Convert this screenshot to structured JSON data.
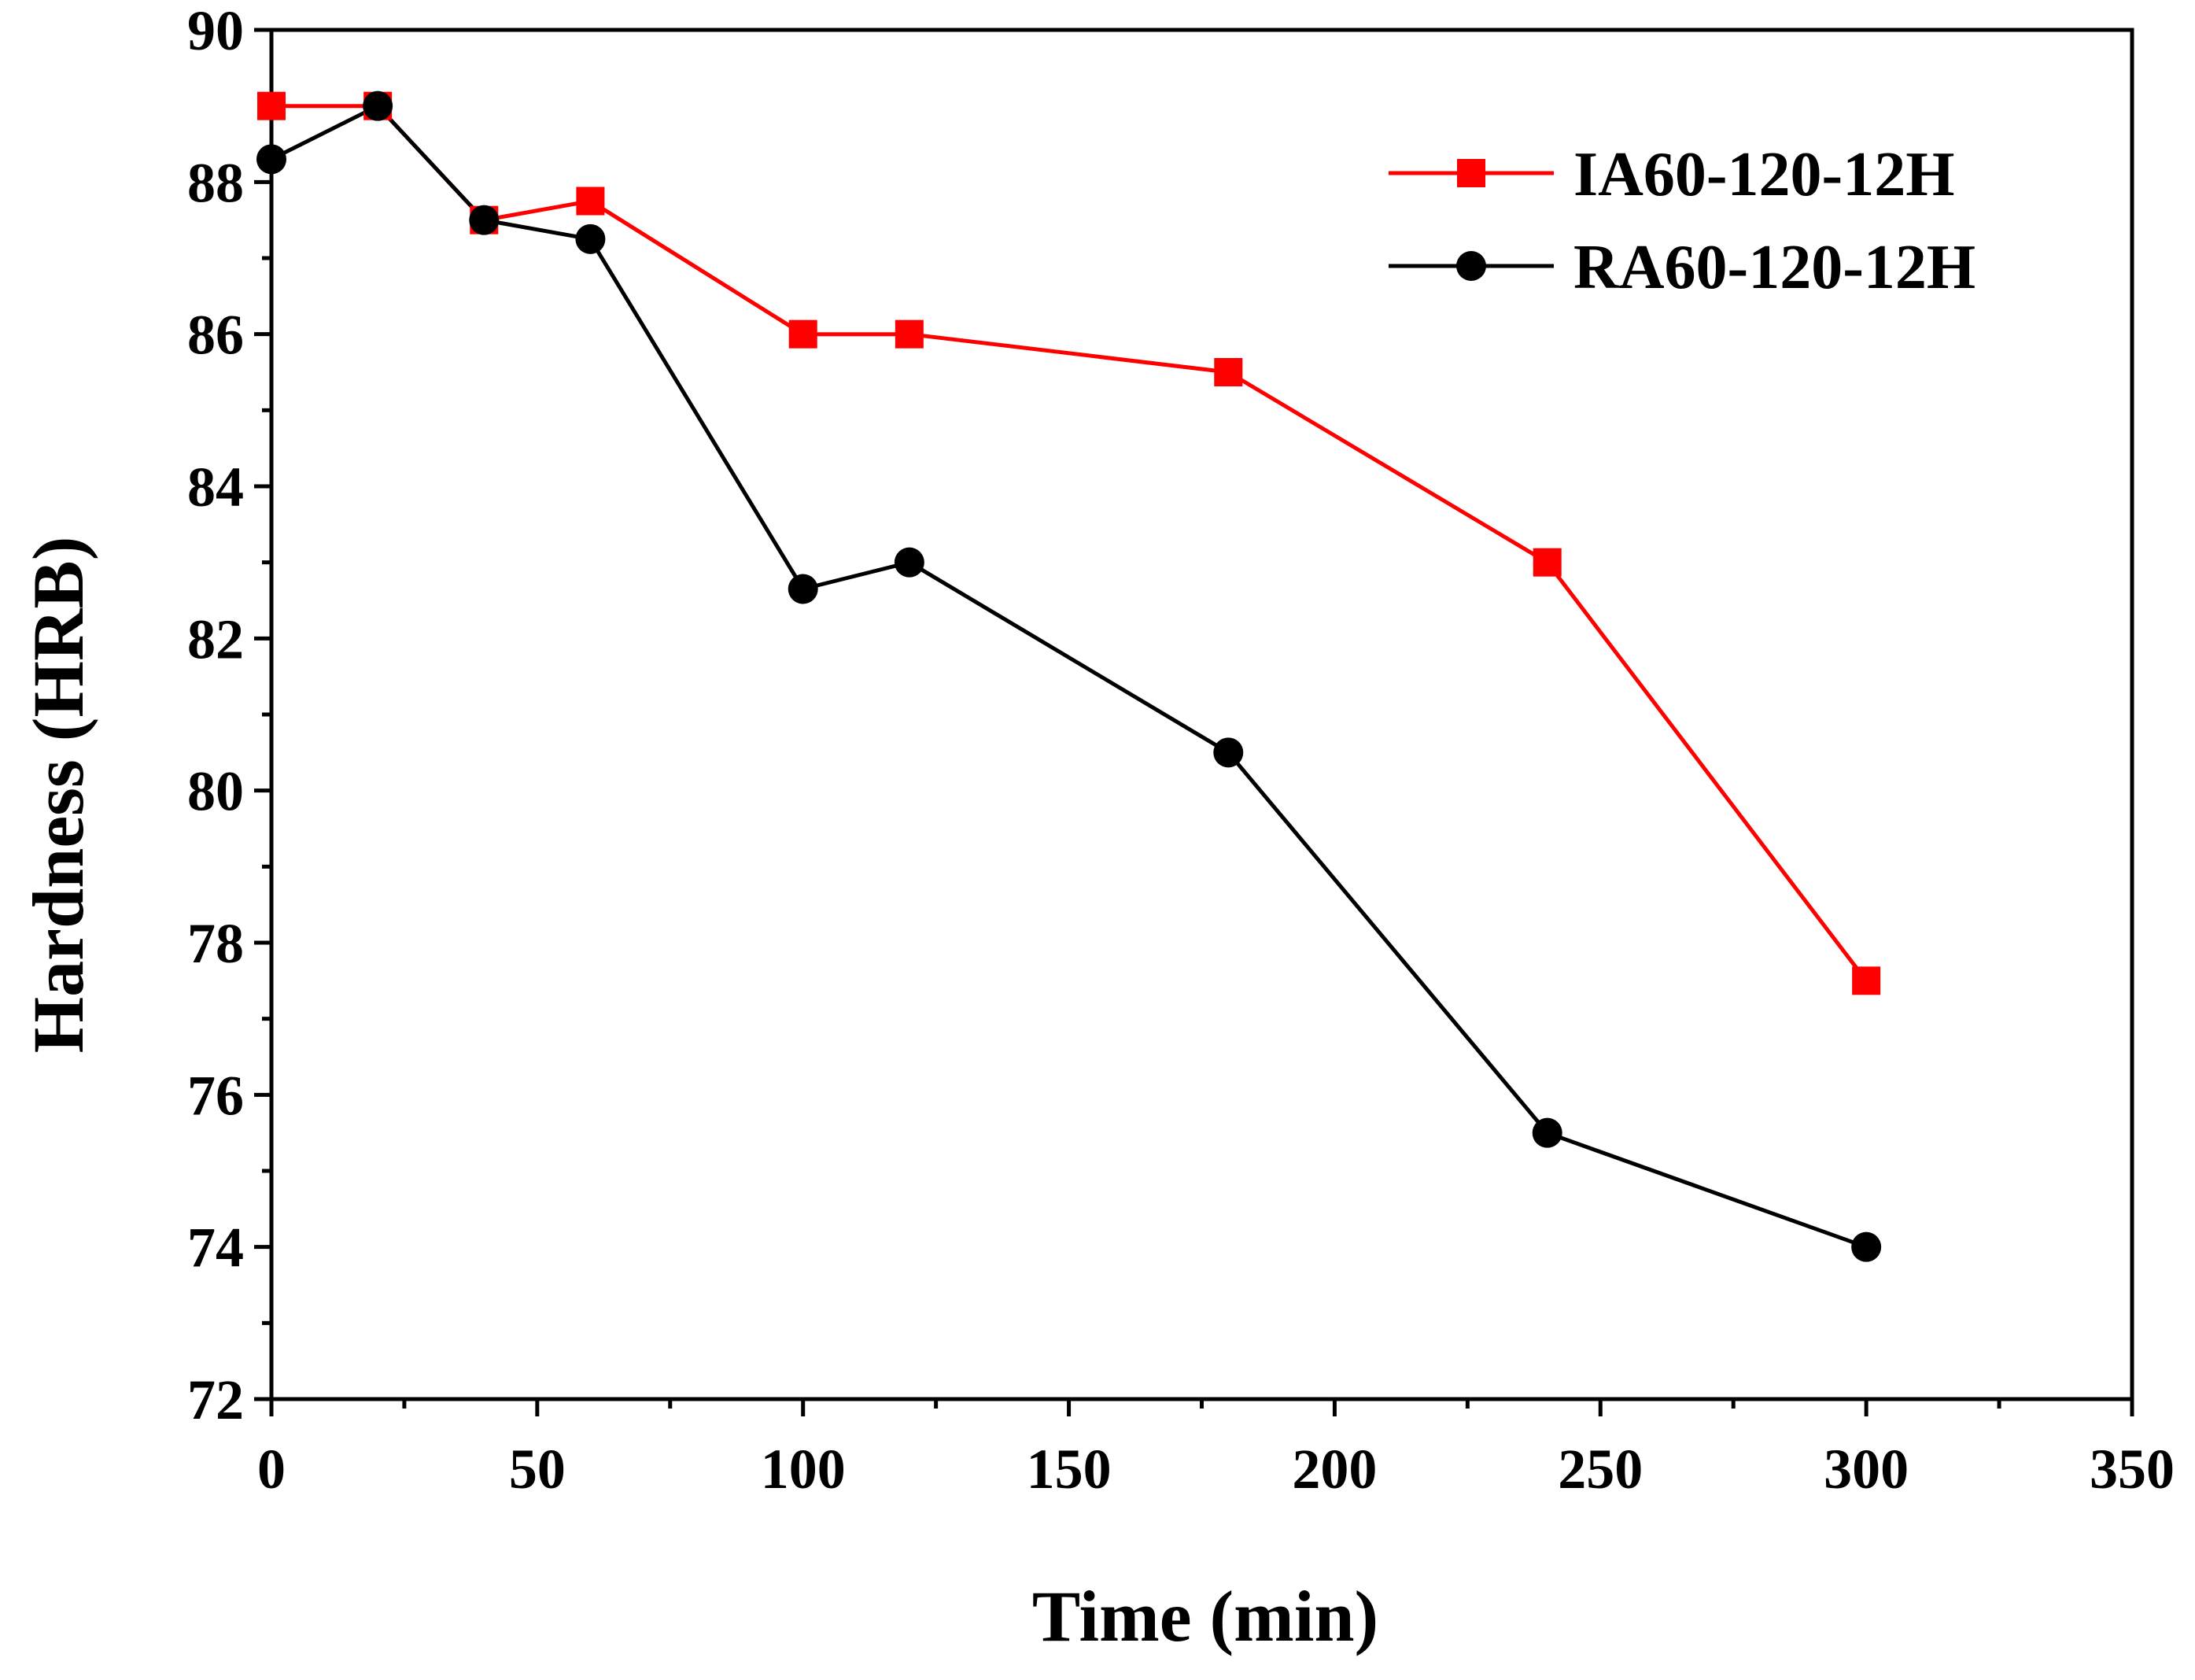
{
  "chart_data": {
    "type": "line",
    "title": "",
    "xlabel": "Time (min)",
    "ylabel": "Hardness (HRB)",
    "xlim": [
      0,
      350
    ],
    "ylim": [
      72,
      90
    ],
    "x_ticks": [
      0,
      50,
      100,
      150,
      200,
      250,
      300,
      350
    ],
    "y_ticks": [
      72,
      74,
      76,
      78,
      80,
      82,
      84,
      86,
      88,
      90
    ],
    "x_minor_step": 25,
    "y_minor_step": 1,
    "grid": false,
    "legend_position": "top-right",
    "series": [
      {
        "name": "IA60-120-12H",
        "color": "#ff0000",
        "marker": "square",
        "x": [
          0,
          20,
          40,
          60,
          100,
          120,
          180,
          240,
          300
        ],
        "y": [
          89,
          89,
          87.5,
          87.75,
          86,
          86,
          85.5,
          83,
          77.5
        ]
      },
      {
        "name": "RA60-120-12H",
        "color": "#000000",
        "marker": "circle",
        "x": [
          0,
          20,
          40,
          60,
          100,
          120,
          180,
          240,
          300
        ],
        "y": [
          88.3,
          89,
          87.5,
          87.25,
          82.65,
          83,
          80.5,
          75.5,
          74
        ]
      }
    ]
  }
}
